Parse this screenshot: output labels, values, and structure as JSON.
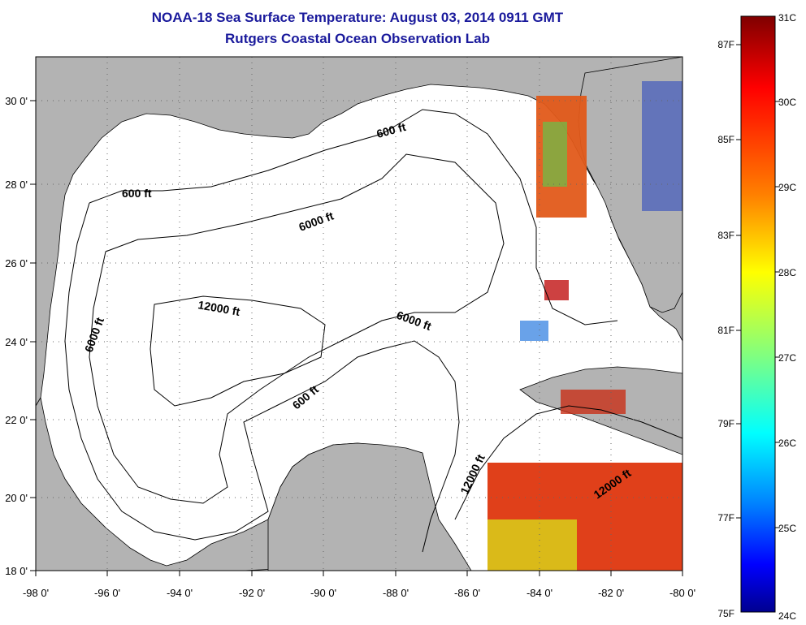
{
  "title": {
    "line1": "NOAA-18 Sea Surface Temperature:  August 03, 2014 0911 GMT",
    "line2": "Rutgers Coastal Ocean Observation Lab"
  },
  "map": {
    "lon_range": [
      -98,
      -80
    ],
    "lat_range": [
      18,
      31
    ],
    "lon_ticks": [
      "-98 0'",
      "-96 0'",
      "-94 0'",
      "-92 0'",
      "-90 0'",
      "-88 0'",
      "-86 0'",
      "-84 0'",
      "-82 0'",
      "-80 0'"
    ],
    "lat_ticks": [
      "30 0'",
      "28 0'",
      "26 0'",
      "24 0'",
      "22 0'",
      "20 0'",
      "18 0'"
    ],
    "contour_labels": {
      "c600_north": "600 ft",
      "c600_west": "600 ft",
      "c6000_north": "6000 ft",
      "c6000_west": "6000 ft",
      "c6000_east": "6000 ft",
      "c12000_center": "12000 ft",
      "c600_south": "600 ft",
      "c12000_south": "12000 ft",
      "c12000_se": "12000 ft"
    },
    "colors": {
      "land": "#b3b3b3",
      "water": "#ffffff",
      "grid": "#666666"
    }
  },
  "colorbar": {
    "celsius_labels": [
      "31C",
      "30C",
      "29C",
      "28C",
      "27C",
      "26C",
      "25C",
      "24C"
    ],
    "fahrenheit_labels": [
      "87F",
      "85F",
      "83F",
      "81F",
      "79F",
      "77F",
      "75F"
    ],
    "stops": [
      "#7f0000",
      "#ff0000",
      "#ff8000",
      "#ffff00",
      "#80ff80",
      "#00ffff",
      "#0080ff",
      "#0000ff",
      "#00008f"
    ]
  }
}
